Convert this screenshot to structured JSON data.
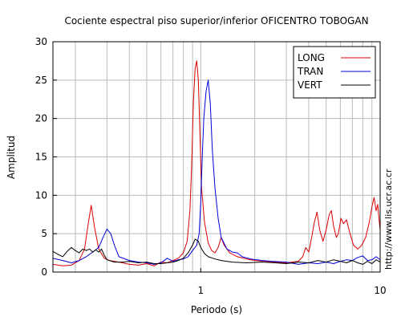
{
  "chart_data": {
    "type": "line",
    "title": "Cociente espectral piso superior/inferior OFICENTRO TOBOGAN",
    "xlabel": "Periodo (s)",
    "ylabel": "Amplitud",
    "x_scale": "log",
    "xlim": [
      0.15,
      10
    ],
    "ylim": [
      0,
      30
    ],
    "x_tick_labels": [
      {
        "value": 1,
        "label": "1"
      },
      {
        "value": 10,
        "label": "10"
      }
    ],
    "y_ticks": [
      0,
      5,
      10,
      15,
      20,
      25,
      30
    ],
    "grid": true,
    "legend_placement": "top-right",
    "watermark": "http://www.lis.ucr.ac.cr",
    "series": [
      {
        "name": "LONG",
        "color": "#dd0000",
        "points": [
          [
            0.15,
            1.0
          ],
          [
            0.17,
            0.8
          ],
          [
            0.19,
            0.9
          ],
          [
            0.21,
            1.5
          ],
          [
            0.225,
            3.0
          ],
          [
            0.235,
            6.0
          ],
          [
            0.245,
            8.7
          ],
          [
            0.255,
            6.0
          ],
          [
            0.27,
            3.0
          ],
          [
            0.29,
            1.8
          ],
          [
            0.31,
            1.5
          ],
          [
            0.35,
            1.3
          ],
          [
            0.4,
            1.0
          ],
          [
            0.45,
            0.9
          ],
          [
            0.5,
            1.1
          ],
          [
            0.55,
            0.8
          ],
          [
            0.6,
            1.3
          ],
          [
            0.65,
            1.2
          ],
          [
            0.7,
            1.5
          ],
          [
            0.75,
            1.8
          ],
          [
            0.8,
            2.5
          ],
          [
            0.84,
            4.0
          ],
          [
            0.87,
            8.0
          ],
          [
            0.89,
            14.0
          ],
          [
            0.91,
            22.0
          ],
          [
            0.93,
            26.5
          ],
          [
            0.95,
            27.5
          ],
          [
            0.97,
            25.0
          ],
          [
            0.99,
            18.0
          ],
          [
            1.01,
            11.0
          ],
          [
            1.05,
            6.5
          ],
          [
            1.1,
            3.8
          ],
          [
            1.15,
            2.8
          ],
          [
            1.2,
            2.5
          ],
          [
            1.25,
            3.2
          ],
          [
            1.3,
            4.5
          ],
          [
            1.35,
            3.5
          ],
          [
            1.45,
            2.5
          ],
          [
            1.6,
            2.0
          ],
          [
            1.8,
            1.7
          ],
          [
            2.0,
            1.5
          ],
          [
            2.3,
            1.4
          ],
          [
            2.6,
            1.3
          ],
          [
            3.0,
            1.2
          ],
          [
            3.5,
            1.4
          ],
          [
            3.7,
            2.0
          ],
          [
            3.85,
            3.2
          ],
          [
            4.0,
            2.6
          ],
          [
            4.15,
            4.5
          ],
          [
            4.3,
            6.5
          ],
          [
            4.45,
            7.8
          ],
          [
            4.6,
            5.5
          ],
          [
            4.8,
            4.0
          ],
          [
            5.0,
            5.5
          ],
          [
            5.2,
            7.5
          ],
          [
            5.35,
            8.0
          ],
          [
            5.5,
            6.0
          ],
          [
            5.7,
            4.5
          ],
          [
            5.85,
            5.0
          ],
          [
            6.05,
            7.0
          ],
          [
            6.25,
            6.3
          ],
          [
            6.5,
            6.8
          ],
          [
            6.8,
            5.0
          ],
          [
            7.1,
            3.5
          ],
          [
            7.5,
            3.0
          ],
          [
            7.9,
            3.5
          ],
          [
            8.3,
            4.5
          ],
          [
            8.7,
            6.5
          ],
          [
            9.0,
            8.5
          ],
          [
            9.25,
            9.7
          ],
          [
            9.5,
            8.0
          ],
          [
            9.7,
            8.8
          ],
          [
            9.85,
            7.0
          ],
          [
            10.0,
            5.5
          ]
        ]
      },
      {
        "name": "TRAN",
        "color": "#0000dd",
        "points": [
          [
            0.15,
            1.8
          ],
          [
            0.17,
            1.5
          ],
          [
            0.19,
            1.2
          ],
          [
            0.21,
            1.5
          ],
          [
            0.23,
            2.0
          ],
          [
            0.25,
            2.6
          ],
          [
            0.27,
            3.2
          ],
          [
            0.285,
            4.5
          ],
          [
            0.3,
            5.6
          ],
          [
            0.315,
            5.0
          ],
          [
            0.33,
            3.5
          ],
          [
            0.35,
            2.0
          ],
          [
            0.4,
            1.5
          ],
          [
            0.45,
            1.3
          ],
          [
            0.5,
            1.2
          ],
          [
            0.55,
            1.0
          ],
          [
            0.6,
            1.2
          ],
          [
            0.65,
            1.8
          ],
          [
            0.7,
            1.4
          ],
          [
            0.75,
            1.6
          ],
          [
            0.8,
            1.7
          ],
          [
            0.85,
            2.0
          ],
          [
            0.9,
            2.8
          ],
          [
            0.95,
            3.5
          ],
          [
            0.98,
            5.0
          ],
          [
            1.0,
            9.0
          ],
          [
            1.02,
            15.0
          ],
          [
            1.04,
            20.0
          ],
          [
            1.07,
            23.5
          ],
          [
            1.1,
            25.0
          ],
          [
            1.13,
            22.0
          ],
          [
            1.16,
            16.0
          ],
          [
            1.2,
            11.0
          ],
          [
            1.25,
            7.0
          ],
          [
            1.3,
            4.5
          ],
          [
            1.4,
            3.0
          ],
          [
            1.5,
            2.6
          ],
          [
            1.6,
            2.5
          ],
          [
            1.7,
            2.0
          ],
          [
            1.9,
            1.7
          ],
          [
            2.2,
            1.5
          ],
          [
            2.5,
            1.4
          ],
          [
            3.0,
            1.3
          ],
          [
            3.5,
            1.0
          ],
          [
            4.0,
            1.2
          ],
          [
            4.5,
            1.1
          ],
          [
            5.0,
            1.3
          ],
          [
            5.5,
            1.1
          ],
          [
            6.0,
            1.4
          ],
          [
            6.5,
            1.6
          ],
          [
            7.0,
            1.5
          ],
          [
            7.5,
            1.9
          ],
          [
            8.0,
            2.1
          ],
          [
            8.5,
            1.5
          ],
          [
            9.0,
            1.6
          ],
          [
            9.5,
            2.0
          ],
          [
            10.0,
            1.6
          ]
        ]
      },
      {
        "name": "VERT",
        "color": "#000000",
        "points": [
          [
            0.15,
            2.7
          ],
          [
            0.16,
            2.3
          ],
          [
            0.17,
            2.0
          ],
          [
            0.18,
            2.7
          ],
          [
            0.19,
            3.2
          ],
          [
            0.2,
            2.8
          ],
          [
            0.21,
            2.5
          ],
          [
            0.22,
            3.0
          ],
          [
            0.23,
            2.8
          ],
          [
            0.24,
            3.0
          ],
          [
            0.25,
            2.6
          ],
          [
            0.26,
            2.9
          ],
          [
            0.27,
            2.6
          ],
          [
            0.28,
            3.0
          ],
          [
            0.29,
            2.2
          ],
          [
            0.3,
            1.6
          ],
          [
            0.33,
            1.3
          ],
          [
            0.37,
            1.3
          ],
          [
            0.4,
            1.4
          ],
          [
            0.45,
            1.2
          ],
          [
            0.5,
            1.3
          ],
          [
            0.55,
            1.1
          ],
          [
            0.6,
            1.1
          ],
          [
            0.65,
            1.2
          ],
          [
            0.7,
            1.3
          ],
          [
            0.75,
            1.5
          ],
          [
            0.8,
            1.8
          ],
          [
            0.85,
            2.5
          ],
          [
            0.9,
            3.5
          ],
          [
            0.93,
            4.3
          ],
          [
            0.97,
            4.0
          ],
          [
            1.0,
            3.2
          ],
          [
            1.05,
            2.4
          ],
          [
            1.1,
            2.0
          ],
          [
            1.2,
            1.7
          ],
          [
            1.3,
            1.5
          ],
          [
            1.5,
            1.3
          ],
          [
            1.8,
            1.2
          ],
          [
            2.2,
            1.3
          ],
          [
            2.6,
            1.2
          ],
          [
            3.0,
            1.1
          ],
          [
            3.5,
            1.3
          ],
          [
            4.0,
            1.2
          ],
          [
            4.5,
            1.5
          ],
          [
            5.0,
            1.3
          ],
          [
            5.5,
            1.6
          ],
          [
            6.0,
            1.4
          ],
          [
            6.5,
            1.2
          ],
          [
            7.0,
            1.5
          ],
          [
            7.5,
            1.2
          ],
          [
            8.0,
            1.0
          ],
          [
            8.5,
            1.4
          ],
          [
            9.0,
            1.1
          ],
          [
            9.5,
            1.6
          ],
          [
            10.0,
            1.3
          ]
        ]
      }
    ]
  }
}
